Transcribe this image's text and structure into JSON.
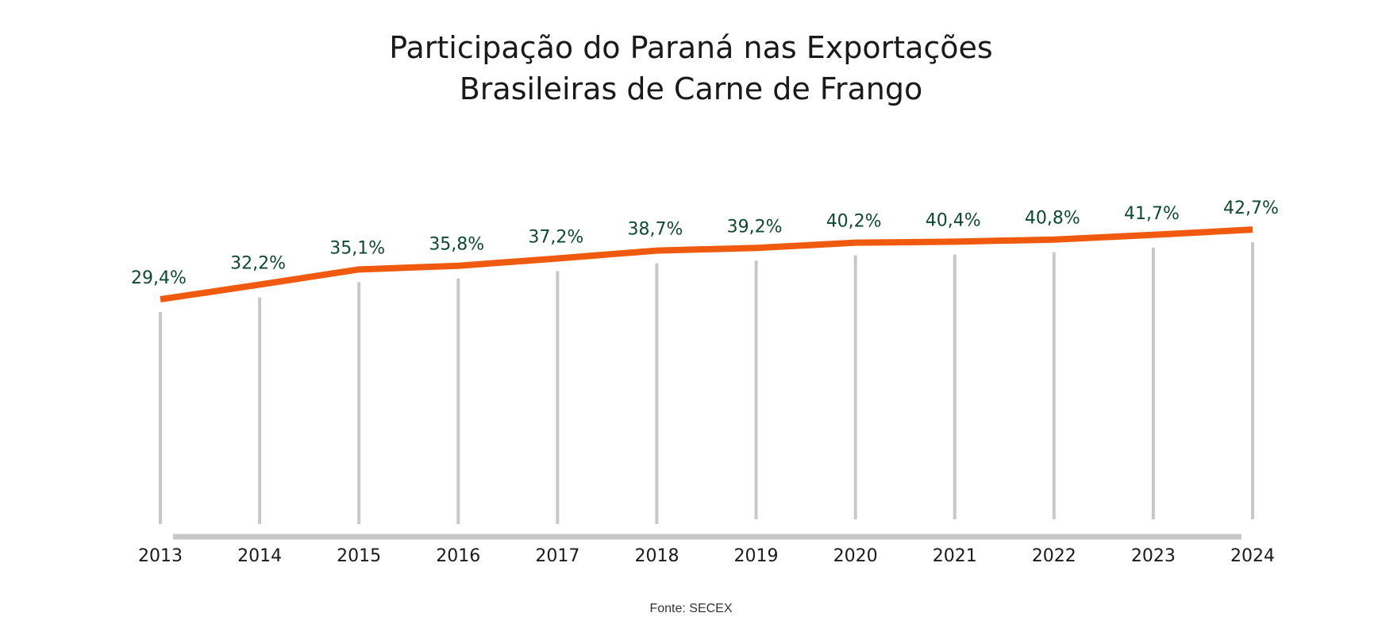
{
  "chart_data": {
    "type": "line",
    "title": [
      "Participação do Paraná nas Exportações",
      "Brasileiras de Carne de Frango"
    ],
    "categories": [
      "2013",
      "2014",
      "2015",
      "2016",
      "2017",
      "2018",
      "2019",
      "2020",
      "2021",
      "2022",
      "2023",
      "2024"
    ],
    "series": [
      {
        "values": [
          29.4,
          32.2,
          35.1,
          35.8,
          37.2,
          38.7,
          39.2,
          40.2,
          40.4,
          40.8,
          41.7,
          42.7
        ],
        "labels": [
          "29,4%",
          "32,2%",
          "35,1%",
          "35,8%",
          "37,2%",
          "38,7%",
          "39,2%",
          "40,2%",
          "40,4%",
          "40,8%",
          "41,7%",
          "42,7%"
        ]
      }
    ],
    "xlabel": "",
    "ylabel": "",
    "ylim": [
      0,
      45
    ],
    "grid": false,
    "legend": "none",
    "source": "Fonte: SECEX",
    "colors": {
      "line": "#f05a0f",
      "labels": "#0f4a2e",
      "drop_lines": "#c8c8c8",
      "axis": "#c8c8c8",
      "tick_labels": "#1a1a1a"
    }
  }
}
